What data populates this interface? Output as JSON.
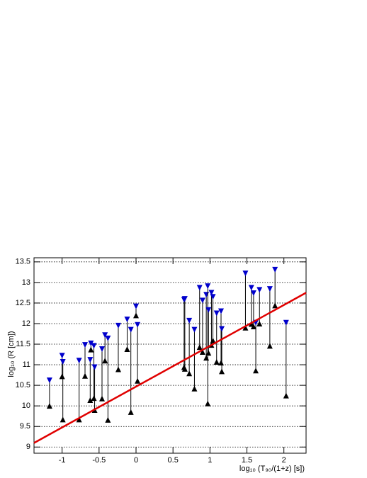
{
  "chart_data": {
    "type": "scatter",
    "x_label": "log₁₀ (T₉₀/(1+z) [s])",
    "y_label": "log₁₀ (R [cm])",
    "xlim": [
      -1.38,
      2.3
    ],
    "ylim": [
      8.85,
      13.6
    ],
    "xticks": [
      -1,
      -0.5,
      0,
      0.5,
      1,
      1.5,
      2
    ],
    "yticks": [
      9,
      9.5,
      10,
      10.5,
      11,
      11.5,
      12,
      12.5,
      13,
      13.5
    ],
    "grid": true,
    "x": [
      -1.17,
      -1.0,
      -0.99,
      -0.77,
      -0.69,
      -0.62,
      -0.61,
      -0.57,
      -0.56,
      -0.46,
      -0.42,
      -0.38,
      -0.24,
      -0.12,
      -0.07,
      0.0,
      0.02,
      0.65,
      0.66,
      0.72,
      0.79,
      0.86,
      0.9,
      0.95,
      0.97,
      0.98,
      1.02,
      1.04,
      1.09,
      1.15,
      1.16,
      1.48,
      1.56,
      1.59,
      1.62,
      1.67,
      1.81,
      1.88,
      2.03
    ],
    "series": [
      {
        "color": "#000000",
        "values": [
          10.0,
          10.72,
          9.67,
          9.67,
          10.73,
          10.14,
          11.37,
          10.19,
          9.9,
          10.18,
          11.1,
          9.66,
          10.89,
          11.38,
          9.85,
          12.2,
          10.61,
          10.94,
          10.9,
          10.79,
          10.42,
          11.43,
          11.31,
          11.17,
          10.06,
          11.29,
          11.48,
          11.59,
          11.07,
          11.05,
          10.84,
          11.9,
          11.99,
          11.93,
          10.86,
          12.0,
          11.46,
          12.44,
          10.25
        ]
      },
      {
        "color": "#0000cc",
        "values": [
          10.62,
          11.22,
          11.07,
          11.1,
          11.48,
          11.12,
          11.52,
          11.46,
          10.94,
          11.38,
          11.72,
          11.64,
          11.95,
          12.1,
          11.85,
          12.42,
          11.97,
          12.58,
          12.6,
          12.07,
          11.85,
          12.87,
          12.56,
          12.7,
          12.91,
          12.33,
          12.75,
          12.65,
          12.25,
          12.3,
          11.87,
          13.22,
          12.87,
          12.74,
          12.02,
          12.82,
          12.84,
          13.31,
          12.02
        ]
      }
    ],
    "fit_line": {
      "color": "#e00000",
      "x": [
        -1.38,
        2.3
      ],
      "values": [
        9.1,
        12.75
      ]
    }
  }
}
